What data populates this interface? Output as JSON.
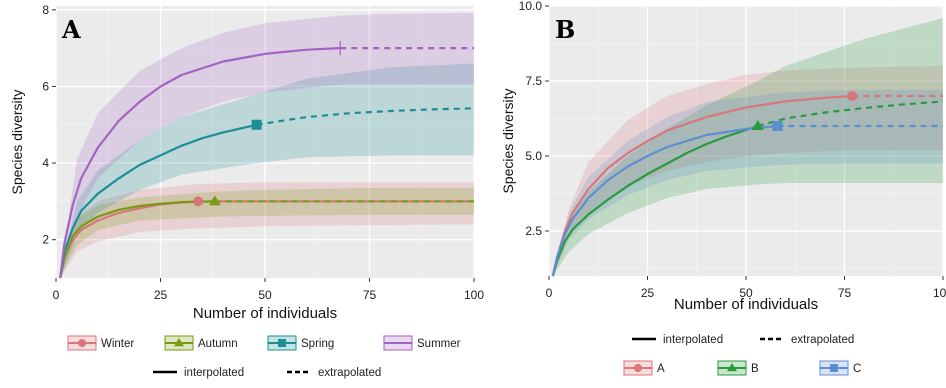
{
  "chart_data": [
    {
      "type": "line",
      "panel_label": "A",
      "xlabel": "Number of individuals",
      "ylabel": "Species diversity",
      "xlim": [
        0,
        100
      ],
      "ylim": [
        1,
        8.1
      ],
      "x_ticks": [
        0,
        25,
        50,
        75,
        100
      ],
      "x_tick_labels": [
        "0",
        "25",
        "50",
        "75",
        "100"
      ],
      "y_ticks": [
        2,
        4,
        6,
        8
      ],
      "y_tick_labels": [
        "2",
        "4",
        "6",
        "8"
      ],
      "grid": true,
      "background": "#ebebeb",
      "legend_position": "bottom",
      "series": [
        {
          "name": "Winter",
          "color": "#d9767a",
          "marker": "circle",
          "observed": [
            34,
            3
          ],
          "interpolated": [
            [
              1,
              1
            ],
            [
              2,
              1.5
            ],
            [
              4,
              2
            ],
            [
              6,
              2.25
            ],
            [
              10,
              2.5
            ],
            [
              15,
              2.7
            ],
            [
              20,
              2.82
            ],
            [
              25,
              2.92
            ],
            [
              30,
              2.97
            ],
            [
              34,
              3
            ]
          ],
          "extrapolated": [
            [
              34,
              3
            ],
            [
              50,
              3
            ],
            [
              75,
              3
            ],
            [
              100,
              3
            ]
          ],
          "band_lower": [
            [
              1,
              1
            ],
            [
              5,
              1.7
            ],
            [
              10,
              1.95
            ],
            [
              20,
              2.2
            ],
            [
              34,
              2.3
            ],
            [
              50,
              2.35
            ],
            [
              75,
              2.38
            ],
            [
              100,
              2.4
            ]
          ],
          "band_upper": [
            [
              1,
              1
            ],
            [
              5,
              2.6
            ],
            [
              10,
              3.0
            ],
            [
              20,
              3.3
            ],
            [
              34,
              3.45
            ],
            [
              50,
              3.5
            ],
            [
              75,
              3.5
            ],
            [
              100,
              3.5
            ]
          ]
        },
        {
          "name": "Autumn",
          "color": "#7a9a15",
          "marker": "triangle",
          "observed": [
            38,
            3
          ],
          "interpolated": [
            [
              1,
              1
            ],
            [
              2,
              1.55
            ],
            [
              4,
              2.1
            ],
            [
              6,
              2.35
            ],
            [
              10,
              2.6
            ],
            [
              15,
              2.78
            ],
            [
              20,
              2.88
            ],
            [
              25,
              2.94
            ],
            [
              30,
              2.98
            ],
            [
              38,
              3
            ]
          ],
          "extrapolated": [
            [
              38,
              3
            ],
            [
              50,
              3
            ],
            [
              75,
              3
            ],
            [
              100,
              3
            ]
          ],
          "band_lower": [
            [
              1,
              1
            ],
            [
              5,
              1.85
            ],
            [
              10,
              2.25
            ],
            [
              20,
              2.5
            ],
            [
              38,
              2.6
            ],
            [
              50,
              2.62
            ],
            [
              75,
              2.65
            ],
            [
              100,
              2.65
            ]
          ],
          "band_upper": [
            [
              1,
              1
            ],
            [
              5,
              2.55
            ],
            [
              10,
              2.9
            ],
            [
              20,
              3.1
            ],
            [
              38,
              3.25
            ],
            [
              50,
              3.3
            ],
            [
              75,
              3.35
            ],
            [
              100,
              3.35
            ]
          ]
        },
        {
          "name": "Spring",
          "color": "#1d8e94",
          "marker": "square",
          "observed": [
            48,
            5
          ],
          "interpolated": [
            [
              1,
              1
            ],
            [
              2,
              1.7
            ],
            [
              4,
              2.3
            ],
            [
              6,
              2.75
            ],
            [
              10,
              3.2
            ],
            [
              15,
              3.6
            ],
            [
              20,
              3.95
            ],
            [
              25,
              4.2
            ],
            [
              30,
              4.45
            ],
            [
              35,
              4.65
            ],
            [
              40,
              4.8
            ],
            [
              48,
              5
            ]
          ],
          "extrapolated": [
            [
              48,
              5
            ],
            [
              55,
              5.12
            ],
            [
              60,
              5.2
            ],
            [
              70,
              5.3
            ],
            [
              80,
              5.36
            ],
            [
              90,
              5.4
            ],
            [
              100,
              5.43
            ]
          ],
          "band_lower": [
            [
              1,
              1
            ],
            [
              5,
              2.1
            ],
            [
              10,
              2.7
            ],
            [
              20,
              3.3
            ],
            [
              30,
              3.7
            ],
            [
              48,
              4.0
            ],
            [
              60,
              4.15
            ],
            [
              80,
              4.2
            ],
            [
              100,
              4.2
            ]
          ],
          "band_upper": [
            [
              1,
              1
            ],
            [
              5,
              3.0
            ],
            [
              10,
              3.8
            ],
            [
              20,
              4.6
            ],
            [
              30,
              5.2
            ],
            [
              48,
              5.8
            ],
            [
              60,
              6.2
            ],
            [
              80,
              6.5
            ],
            [
              100,
              6.6
            ]
          ]
        },
        {
          "name": "Summer",
          "color": "#a563c4",
          "marker": "line",
          "observed": [
            68,
            7
          ],
          "interpolated": [
            [
              1,
              1
            ],
            [
              2,
              1.9
            ],
            [
              4,
              2.9
            ],
            [
              6,
              3.6
            ],
            [
              10,
              4.4
            ],
            [
              15,
              5.1
            ],
            [
              20,
              5.6
            ],
            [
              25,
              6.0
            ],
            [
              30,
              6.3
            ],
            [
              40,
              6.65
            ],
            [
              50,
              6.85
            ],
            [
              60,
              6.96
            ],
            [
              68,
              7
            ]
          ],
          "extrapolated": [
            [
              68,
              7
            ],
            [
              80,
              7
            ],
            [
              90,
              7
            ],
            [
              100,
              7
            ]
          ],
          "band_lower": [
            [
              1,
              1
            ],
            [
              5,
              2.6
            ],
            [
              10,
              3.6
            ],
            [
              20,
              4.6
            ],
            [
              30,
              5.2
            ],
            [
              40,
              5.6
            ],
            [
              50,
              5.85
            ],
            [
              68,
              6.05
            ],
            [
              80,
              6.05
            ],
            [
              100,
              6.05
            ]
          ],
          "band_upper": [
            [
              1,
              1
            ],
            [
              5,
              4.1
            ],
            [
              10,
              5.3
            ],
            [
              20,
              6.4
            ],
            [
              30,
              7.0
            ],
            [
              40,
              7.4
            ],
            [
              50,
              7.65
            ],
            [
              68,
              7.85
            ],
            [
              80,
              7.9
            ],
            [
              100,
              7.92
            ]
          ]
        }
      ],
      "line_type_legend": [
        {
          "label": "interpolated",
          "style": "solid"
        },
        {
          "label": "extrapolated",
          "style": "dashed"
        }
      ]
    },
    {
      "type": "line",
      "panel_label": "B",
      "xlabel": "Number of individuals",
      "ylabel": "Species diversity",
      "xlim": [
        0,
        100
      ],
      "ylim": [
        1,
        10
      ],
      "x_ticks": [
        0,
        25,
        50,
        75,
        100
      ],
      "x_tick_labels": [
        "0",
        "25",
        "50",
        "75",
        "100"
      ],
      "y_ticks": [
        2.5,
        5,
        7.5,
        10
      ],
      "y_tick_labels": [
        "2.5",
        "5.0",
        "7.5",
        "10.0"
      ],
      "grid": true,
      "background": "#ebebeb",
      "legend_position": "bottom",
      "series": [
        {
          "name": "A",
          "color": "#d9767a",
          "marker": "circle",
          "observed": [
            77,
            7
          ],
          "interpolated": [
            [
              1,
              1
            ],
            [
              2,
              1.6
            ],
            [
              4,
              2.5
            ],
            [
              6,
              3.1
            ],
            [
              10,
              3.9
            ],
            [
              15,
              4.6
            ],
            [
              20,
              5.1
            ],
            [
              25,
              5.5
            ],
            [
              30,
              5.85
            ],
            [
              40,
              6.3
            ],
            [
              50,
              6.62
            ],
            [
              60,
              6.82
            ],
            [
              70,
              6.94
            ],
            [
              77,
              7
            ]
          ],
          "extrapolated": [
            [
              77,
              7
            ],
            [
              85,
              7
            ],
            [
              100,
              7
            ]
          ],
          "band_lower": [
            [
              1,
              1
            ],
            [
              5,
              2.3
            ],
            [
              10,
              3.1
            ],
            [
              20,
              4.0
            ],
            [
              30,
              4.5
            ],
            [
              40,
              4.8
            ],
            [
              50,
              5.0
            ],
            [
              60,
              5.1
            ],
            [
              77,
              5.2
            ],
            [
              100,
              5.2
            ]
          ],
          "band_upper": [
            [
              1,
              1
            ],
            [
              5,
              3.2
            ],
            [
              10,
              4.8
            ],
            [
              20,
              6.2
            ],
            [
              30,
              7.0
            ],
            [
              40,
              7.4
            ],
            [
              50,
              7.7
            ],
            [
              60,
              7.85
            ],
            [
              77,
              7.95
            ],
            [
              100,
              8.0
            ]
          ]
        },
        {
          "name": "B",
          "color": "#2a9a3c",
          "marker": "triangle",
          "observed": [
            53,
            6
          ],
          "interpolated": [
            [
              1,
              1
            ],
            [
              2,
              1.5
            ],
            [
              4,
              2.15
            ],
            [
              6,
              2.55
            ],
            [
              10,
              3.05
            ],
            [
              15,
              3.55
            ],
            [
              20,
              4.0
            ],
            [
              25,
              4.4
            ],
            [
              30,
              4.75
            ],
            [
              35,
              5.1
            ],
            [
              40,
              5.4
            ],
            [
              45,
              5.65
            ],
            [
              53,
              6
            ]
          ],
          "extrapolated": [
            [
              53,
              6
            ],
            [
              60,
              6.25
            ],
            [
              70,
              6.45
            ],
            [
              80,
              6.6
            ],
            [
              90,
              6.72
            ],
            [
              100,
              6.82
            ]
          ],
          "band_lower": [
            [
              1,
              1
            ],
            [
              5,
              1.8
            ],
            [
              10,
              2.4
            ],
            [
              20,
              3.1
            ],
            [
              30,
              3.6
            ],
            [
              40,
              3.9
            ],
            [
              53,
              4.05
            ],
            [
              60,
              4.1
            ],
            [
              80,
              4.1
            ],
            [
              100,
              4.1
            ]
          ],
          "band_upper": [
            [
              1,
              1
            ],
            [
              5,
              2.8
            ],
            [
              10,
              3.8
            ],
            [
              20,
              5.0
            ],
            [
              30,
              5.9
            ],
            [
              40,
              6.7
            ],
            [
              53,
              7.5
            ],
            [
              60,
              8.0
            ],
            [
              80,
              8.9
            ],
            [
              100,
              9.6
            ]
          ]
        },
        {
          "name": "C",
          "color": "#5b8fcf",
          "marker": "square",
          "observed": [
            58,
            6
          ],
          "interpolated": [
            [
              1,
              1
            ],
            [
              2,
              1.6
            ],
            [
              4,
              2.4
            ],
            [
              6,
              2.9
            ],
            [
              10,
              3.6
            ],
            [
              15,
              4.2
            ],
            [
              20,
              4.65
            ],
            [
              25,
              5.0
            ],
            [
              30,
              5.3
            ],
            [
              40,
              5.7
            ],
            [
              50,
              5.9
            ],
            [
              58,
              6
            ]
          ],
          "extrapolated": [
            [
              58,
              6
            ],
            [
              75,
              6
            ],
            [
              100,
              6
            ]
          ],
          "band_lower": [
            [
              1,
              1
            ],
            [
              5,
              2.2
            ],
            [
              10,
              2.9
            ],
            [
              20,
              3.7
            ],
            [
              30,
              4.2
            ],
            [
              40,
              4.5
            ],
            [
              58,
              4.7
            ],
            [
              75,
              4.75
            ],
            [
              100,
              4.75
            ]
          ],
          "band_upper": [
            [
              1,
              1
            ],
            [
              5,
              3.1
            ],
            [
              10,
              4.3
            ],
            [
              20,
              5.5
            ],
            [
              30,
              6.3
            ],
            [
              40,
              6.8
            ],
            [
              58,
              7.1
            ],
            [
              75,
              7.2
            ],
            [
              100,
              7.2
            ]
          ]
        }
      ],
      "line_type_legend": [
        {
          "label": "interpolated",
          "style": "solid"
        },
        {
          "label": "extrapolated",
          "style": "dashed"
        }
      ]
    }
  ]
}
